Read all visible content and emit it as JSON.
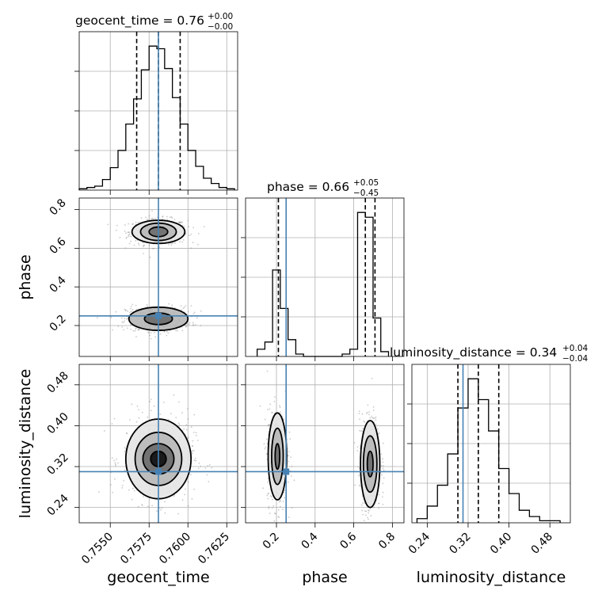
{
  "chart_data": {
    "type": "corner",
    "parameters": [
      "geocent_time",
      "phase",
      "luminosity_distance"
    ],
    "truth": {
      "geocent_time": 0.7581,
      "phase": 0.25,
      "luminosity_distance": 0.31
    },
    "titles": [
      {
        "main": "geocent_time = 0.76",
        "plus": "+0.00",
        "minus": "−0.00"
      },
      {
        "main": "phase = 0.66",
        "plus": "+0.05",
        "minus": "−0.45"
      },
      {
        "main": "luminosity_distance = 0.34",
        "plus": "+0.04",
        "minus": "−0.04"
      }
    ],
    "axis_labels": {
      "x": [
        "geocent_time",
        "phase",
        "luminosity_distance"
      ],
      "y": [
        "phase",
        "luminosity_distance"
      ]
    },
    "ticks": {
      "geocent_time": [
        "0.7550",
        "0.7575",
        "0.7600",
        "0.7625"
      ],
      "phase": [
        "0.2",
        "0.4",
        "0.6",
        "0.8"
      ],
      "luminosity_distance": [
        "0.24",
        "0.32",
        "0.40",
        "0.48"
      ]
    },
    "ranges": {
      "geocent_time": [
        0.753,
        0.7632
      ],
      "phase": [
        0.04,
        0.86
      ],
      "luminosity_distance": [
        0.21,
        0.52
      ]
    },
    "quantiles": {
      "geocent_time": [
        0.7567,
        0.7581,
        0.7595
      ],
      "phase": [
        0.21,
        0.66,
        0.71
      ],
      "luminosity_distance": [
        0.3,
        0.34,
        0.38
      ]
    },
    "histograms": {
      "geocent_time": {
        "edges": [
          0.753,
          0.7535,
          0.754,
          0.7545,
          0.755,
          0.7555,
          0.756,
          0.7565,
          0.757,
          0.7575,
          0.758,
          0.7585,
          0.759,
          0.7595,
          0.76,
          0.7605,
          0.761,
          0.7615,
          0.762,
          0.7625,
          0.763
        ],
        "counts": [
          1,
          2,
          3,
          8,
          17,
          30,
          50,
          69,
          91,
          109,
          107,
          92,
          70,
          50,
          30,
          18,
          9,
          5,
          2,
          1
        ]
      },
      "phase": {
        "edges": [
          0.1,
          0.14,
          0.18,
          0.22,
          0.26,
          0.3,
          0.34,
          0.38,
          0.42,
          0.46,
          0.5,
          0.54,
          0.58,
          0.62,
          0.66,
          0.7,
          0.74,
          0.78
        ],
        "counts": [
          3,
          6,
          36,
          20,
          7,
          1,
          0,
          0,
          0,
          0,
          0,
          1,
          3,
          60,
          58,
          16,
          2
        ]
      },
      "luminosity_distance": {
        "edges": [
          0.22,
          0.24,
          0.26,
          0.28,
          0.3,
          0.32,
          0.34,
          0.36,
          0.38,
          0.4,
          0.42,
          0.44,
          0.46,
          0.48,
          0.5
        ],
        "counts": [
          2,
          8,
          18,
          33,
          55,
          69,
          59,
          44,
          26,
          14,
          6,
          3,
          1,
          1
        ]
      }
    },
    "contours_2d": {
      "phase_vs_geocent_time": [
        {
          "x": 0.7581,
          "y": 0.685,
          "rx": [
            0.0006,
            0.00115,
            0.0017
          ],
          "ry": [
            0.025,
            0.045,
            0.06
          ]
        },
        {
          "x": 0.7581,
          "y": 0.235,
          "rx": [
            0.0009,
            0.0019
          ],
          "ry": [
            0.03,
            0.06
          ]
        }
      ],
      "luminosity_distance_vs_geocent_time": [
        {
          "x": 0.7581,
          "y": 0.335,
          "rx": [
            0.0005,
            0.001,
            0.0015,
            0.0021
          ],
          "ry": [
            0.015,
            0.03,
            0.052,
            0.078
          ]
        }
      ],
      "luminosity_distance_vs_phase": [
        {
          "x": 0.205,
          "y": 0.34,
          "rx": [
            0.012,
            0.03,
            0.048
          ],
          "ry": [
            0.025,
            0.055,
            0.085
          ]
        },
        {
          "x": 0.685,
          "y": 0.325,
          "rx": [
            0.015,
            0.035,
            0.05
          ],
          "ry": [
            0.025,
            0.055,
            0.085
          ]
        }
      ]
    }
  }
}
